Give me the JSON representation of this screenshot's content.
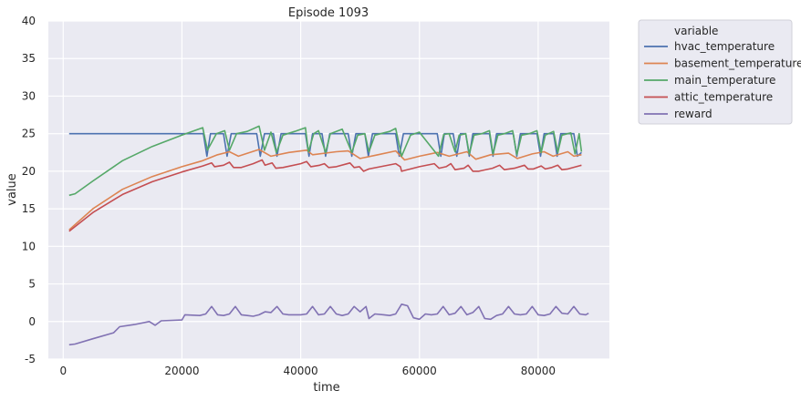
{
  "chart_data": {
    "type": "line",
    "title": "Episode 1093",
    "xlabel": "time",
    "ylabel": "value",
    "xlim": [
      -2500,
      92000
    ],
    "ylim": [
      -5,
      40
    ],
    "xticks": [
      0,
      20000,
      40000,
      60000,
      80000
    ],
    "yticks": [
      -5,
      0,
      5,
      10,
      15,
      20,
      25,
      30,
      35,
      40
    ],
    "grid": true,
    "legend": {
      "title": "variable",
      "placement": "outside-top-right"
    },
    "series": [
      {
        "name": "hvac_temperature",
        "color": "#4c72b0",
        "points": [
          [
            1000,
            25
          ],
          [
            23600,
            25
          ],
          [
            24200,
            22
          ],
          [
            24800,
            25
          ],
          [
            27000,
            25
          ],
          [
            27600,
            22
          ],
          [
            28300,
            25
          ],
          [
            32600,
            25
          ],
          [
            33200,
            22
          ],
          [
            33900,
            25
          ],
          [
            35400,
            25
          ],
          [
            36000,
            22
          ],
          [
            36700,
            25
          ],
          [
            40800,
            25
          ],
          [
            41400,
            22
          ],
          [
            42000,
            25
          ],
          [
            43600,
            25
          ],
          [
            44200,
            22
          ],
          [
            44900,
            25
          ],
          [
            48000,
            25
          ],
          [
            48600,
            22
          ],
          [
            49300,
            25
          ],
          [
            50800,
            25
          ],
          [
            51400,
            22
          ],
          [
            52100,
            25
          ],
          [
            56000,
            25
          ],
          [
            56600,
            22
          ],
          [
            57300,
            25
          ],
          [
            63000,
            25
          ],
          [
            63600,
            22
          ],
          [
            64200,
            25
          ],
          [
            65700,
            25
          ],
          [
            66300,
            22
          ],
          [
            66900,
            25
          ],
          [
            67800,
            25
          ],
          [
            68400,
            22
          ],
          [
            69000,
            25
          ],
          [
            71800,
            25
          ],
          [
            72400,
            22
          ],
          [
            73000,
            25
          ],
          [
            75800,
            25
          ],
          [
            76400,
            22
          ],
          [
            77000,
            25
          ],
          [
            79800,
            25
          ],
          [
            80400,
            22
          ],
          [
            81000,
            25
          ],
          [
            82600,
            25
          ],
          [
            83200,
            22
          ],
          [
            83800,
            25
          ],
          [
            86000,
            25
          ],
          [
            86600,
            22
          ],
          [
            87300,
            22.5
          ]
        ]
      },
      {
        "name": "basement_temperature",
        "color": "#dd8452",
        "points": [
          [
            1000,
            12.2
          ],
          [
            5000,
            15.0
          ],
          [
            10000,
            17.6
          ],
          [
            15000,
            19.3
          ],
          [
            20000,
            20.6
          ],
          [
            23500,
            21.4
          ],
          [
            26000,
            22.2
          ],
          [
            28000,
            22.6
          ],
          [
            29500,
            22.0
          ],
          [
            33000,
            22.9
          ],
          [
            35000,
            22.0
          ],
          [
            38000,
            22.5
          ],
          [
            41000,
            22.8
          ],
          [
            42000,
            22.2
          ],
          [
            46000,
            22.6
          ],
          [
            48000,
            22.7
          ],
          [
            50000,
            21.7
          ],
          [
            53000,
            22.2
          ],
          [
            56000,
            22.7
          ],
          [
            57500,
            21.5
          ],
          [
            60000,
            22.0
          ],
          [
            63000,
            22.5
          ],
          [
            65000,
            22.0
          ],
          [
            68000,
            22.6
          ],
          [
            69500,
            21.6
          ],
          [
            72000,
            22.2
          ],
          [
            75000,
            22.4
          ],
          [
            76500,
            21.7
          ],
          [
            79000,
            22.3
          ],
          [
            81000,
            22.6
          ],
          [
            82500,
            22.0
          ],
          [
            85000,
            22.6
          ],
          [
            86000,
            22.0
          ],
          [
            87300,
            22.2
          ]
        ]
      },
      {
        "name": "main_temperature",
        "color": "#55a868",
        "points": [
          [
            1000,
            16.8
          ],
          [
            2000,
            17.0
          ],
          [
            5000,
            18.7
          ],
          [
            10000,
            21.4
          ],
          [
            15000,
            23.3
          ],
          [
            20000,
            24.8
          ],
          [
            23500,
            25.8
          ],
          [
            24300,
            22.8
          ],
          [
            25800,
            25.0
          ],
          [
            27200,
            25.4
          ],
          [
            28000,
            22.8
          ],
          [
            29200,
            25.0
          ],
          [
            31000,
            25.3
          ],
          [
            33000,
            26.0
          ],
          [
            33900,
            22.8
          ],
          [
            35000,
            25.2
          ],
          [
            35900,
            22.5
          ],
          [
            37000,
            24.8
          ],
          [
            39000,
            25.3
          ],
          [
            40800,
            25.8
          ],
          [
            41300,
            22.6
          ],
          [
            42200,
            25.0
          ],
          [
            43000,
            25.4
          ],
          [
            44200,
            22.5
          ],
          [
            45000,
            25.0
          ],
          [
            47000,
            25.6
          ],
          [
            48600,
            22.5
          ],
          [
            49600,
            24.8
          ],
          [
            50800,
            25.0
          ],
          [
            51500,
            22.6
          ],
          [
            52500,
            24.8
          ],
          [
            55000,
            25.3
          ],
          [
            56000,
            25.7
          ],
          [
            57000,
            22.0
          ],
          [
            58500,
            24.8
          ],
          [
            60000,
            25.2
          ],
          [
            63200,
            22.0
          ],
          [
            64100,
            24.9
          ],
          [
            65000,
            25.0
          ],
          [
            66000,
            22.6
          ],
          [
            66700,
            24.8
          ],
          [
            67800,
            25.0
          ],
          [
            68400,
            22.3
          ],
          [
            69200,
            24.8
          ],
          [
            70500,
            25.0
          ],
          [
            71800,
            25.4
          ],
          [
            72400,
            22.3
          ],
          [
            73200,
            24.8
          ],
          [
            74300,
            25.0
          ],
          [
            75700,
            25.4
          ],
          [
            76400,
            22.2
          ],
          [
            77200,
            24.8
          ],
          [
            78500,
            25.0
          ],
          [
            79800,
            25.4
          ],
          [
            80500,
            22.5
          ],
          [
            81200,
            24.8
          ],
          [
            82600,
            25.3
          ],
          [
            83300,
            22.5
          ],
          [
            84000,
            24.8
          ],
          [
            85500,
            25.1
          ],
          [
            86200,
            22.3
          ],
          [
            86900,
            25.0
          ],
          [
            87300,
            22.6
          ]
        ]
      },
      {
        "name": "attic_temperature",
        "color": "#c44e52",
        "points": [
          [
            1000,
            12.0
          ],
          [
            5000,
            14.5
          ],
          [
            10000,
            16.9
          ],
          [
            15000,
            18.6
          ],
          [
            20000,
            19.9
          ],
          [
            23500,
            20.7
          ],
          [
            25000,
            21.1
          ],
          [
            25500,
            20.6
          ],
          [
            27000,
            20.8
          ],
          [
            28000,
            21.2
          ],
          [
            28700,
            20.5
          ],
          [
            30000,
            20.5
          ],
          [
            32000,
            21.0
          ],
          [
            33500,
            21.5
          ],
          [
            34000,
            20.8
          ],
          [
            35200,
            21.1
          ],
          [
            35800,
            20.4
          ],
          [
            37000,
            20.5
          ],
          [
            40000,
            21.0
          ],
          [
            41000,
            21.3
          ],
          [
            41700,
            20.6
          ],
          [
            43200,
            20.8
          ],
          [
            44000,
            21.0
          ],
          [
            44700,
            20.5
          ],
          [
            46000,
            20.6
          ],
          [
            48300,
            21.1
          ],
          [
            49000,
            20.5
          ],
          [
            49900,
            20.6
          ],
          [
            50600,
            20.0
          ],
          [
            51500,
            20.3
          ],
          [
            56000,
            21.0
          ],
          [
            56800,
            20.6
          ],
          [
            57000,
            20.0
          ],
          [
            60000,
            20.6
          ],
          [
            62500,
            21.0
          ],
          [
            63300,
            20.4
          ],
          [
            64500,
            20.6
          ],
          [
            65300,
            21.0
          ],
          [
            66000,
            20.2
          ],
          [
            67500,
            20.4
          ],
          [
            68200,
            20.8
          ],
          [
            69000,
            20.0
          ],
          [
            70000,
            20.0
          ],
          [
            72300,
            20.4
          ],
          [
            73500,
            20.8
          ],
          [
            74300,
            20.2
          ],
          [
            76000,
            20.4
          ],
          [
            77700,
            20.8
          ],
          [
            78300,
            20.3
          ],
          [
            79200,
            20.3
          ],
          [
            80500,
            20.7
          ],
          [
            81200,
            20.3
          ],
          [
            82300,
            20.5
          ],
          [
            83300,
            20.8
          ],
          [
            84000,
            20.2
          ],
          [
            85000,
            20.3
          ],
          [
            87300,
            20.8
          ]
        ]
      },
      {
        "name": "reward",
        "color": "#8172b3",
        "points": [
          [
            1000,
            -3.1
          ],
          [
            2000,
            -3.0
          ],
          [
            5000,
            -2.3
          ],
          [
            8500,
            -1.5
          ],
          [
            9500,
            -0.7
          ],
          [
            12000,
            -0.4
          ],
          [
            14500,
            0.0
          ],
          [
            15500,
            -0.5
          ],
          [
            16500,
            0.1
          ],
          [
            20000,
            0.2
          ],
          [
            20500,
            0.9
          ],
          [
            23000,
            0.8
          ],
          [
            24000,
            1.0
          ],
          [
            25000,
            2.0
          ],
          [
            26000,
            0.9
          ],
          [
            27000,
            0.8
          ],
          [
            28000,
            1.0
          ],
          [
            29000,
            2.0
          ],
          [
            30000,
            0.9
          ],
          [
            31000,
            0.8
          ],
          [
            32000,
            0.7
          ],
          [
            33000,
            0.9
          ],
          [
            34000,
            1.3
          ],
          [
            35000,
            1.2
          ],
          [
            36000,
            2.0
          ],
          [
            37000,
            1.0
          ],
          [
            38000,
            0.9
          ],
          [
            40000,
            0.9
          ],
          [
            41000,
            1.0
          ],
          [
            42000,
            2.0
          ],
          [
            43000,
            0.9
          ],
          [
            44000,
            1.0
          ],
          [
            45000,
            2.0
          ],
          [
            46000,
            1.0
          ],
          [
            47000,
            0.8
          ],
          [
            48000,
            1.0
          ],
          [
            49000,
            2.0
          ],
          [
            50000,
            1.3
          ],
          [
            51000,
            2.0
          ],
          [
            51500,
            0.4
          ],
          [
            52500,
            1.0
          ],
          [
            54000,
            0.9
          ],
          [
            55000,
            0.8
          ],
          [
            56000,
            1.0
          ],
          [
            57000,
            2.3
          ],
          [
            58000,
            2.1
          ],
          [
            59000,
            0.5
          ],
          [
            60000,
            0.3
          ],
          [
            61000,
            1.0
          ],
          [
            62000,
            0.9
          ],
          [
            63000,
            1.0
          ],
          [
            64000,
            2.0
          ],
          [
            65000,
            0.9
          ],
          [
            66000,
            1.1
          ],
          [
            67000,
            2.0
          ],
          [
            68000,
            0.9
          ],
          [
            69000,
            1.2
          ],
          [
            70000,
            2.0
          ],
          [
            71000,
            0.4
          ],
          [
            72000,
            0.3
          ],
          [
            73000,
            0.8
          ],
          [
            74000,
            1.0
          ],
          [
            75000,
            2.0
          ],
          [
            76000,
            1.0
          ],
          [
            77000,
            0.9
          ],
          [
            78000,
            1.0
          ],
          [
            79000,
            2.0
          ],
          [
            80000,
            0.9
          ],
          [
            81000,
            0.8
          ],
          [
            82000,
            1.0
          ],
          [
            83000,
            2.0
          ],
          [
            84000,
            1.1
          ],
          [
            85000,
            1.0
          ],
          [
            86000,
            2.0
          ],
          [
            87000,
            1.0
          ],
          [
            88000,
            0.9
          ],
          [
            88500,
            1.1
          ]
        ]
      }
    ]
  }
}
